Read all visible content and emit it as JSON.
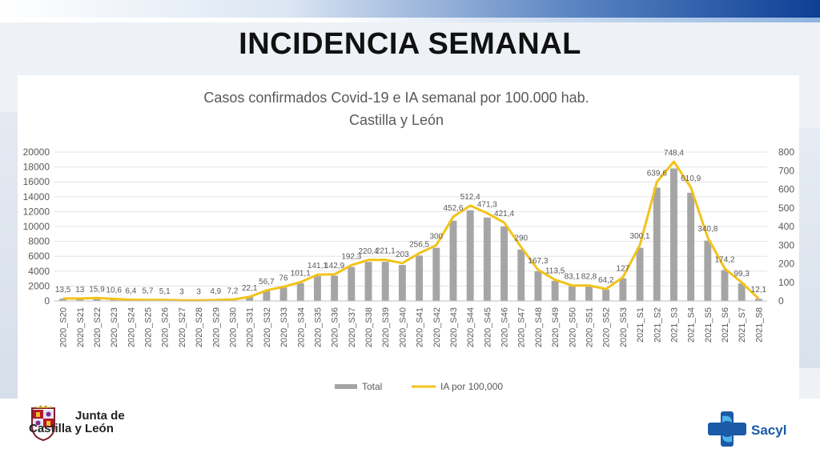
{
  "slide": {
    "title": "INCIDENCIA SEMANAL"
  },
  "logos": {
    "jcyl_line1": "Junta de",
    "jcyl_line2": "Castilla y León",
    "sacyl": "Sacyl"
  },
  "colors": {
    "bar": "#a5a5a5",
    "line": "#f2c31b",
    "text": "#595959",
    "grid": "#e3e3e3"
  },
  "chart_data": {
    "type": "bar",
    "title": "Casos confirmados Covid-19 e IA semanal por 100.000 hab.",
    "subtitle": "Castilla y León",
    "categories": [
      "2020_S20",
      "2020_S21",
      "2020_S22",
      "2020_S23",
      "2020_S24",
      "2020_S25",
      "2020_S26",
      "2020_S27",
      "2020_S28",
      "2020_S29",
      "2020_S30",
      "2020_S31",
      "2020_S32",
      "2020_S33",
      "2020_S34",
      "2020_S35",
      "2020_S36",
      "2020_S37",
      "2020_S38",
      "2020_S39",
      "2020_S40",
      "2020_S41",
      "2020_S42",
      "2020_S43",
      "2020_S44",
      "2020_S45",
      "2020_S46",
      "2020_S47",
      "2020_S48",
      "2020_S49",
      "2020_S50",
      "2020_S51",
      "2020_S52",
      "2020_S53",
      "2021_S1",
      "2021_S2",
      "2021_S3",
      "2021_S4",
      "2021_S5",
      "2021_S6",
      "2021_S7",
      "2021_S8"
    ],
    "y_left": {
      "min": 0,
      "max": 20000,
      "step": 2000,
      "ticks": [
        "0",
        "2000",
        "4000",
        "6000",
        "8000",
        "10000",
        "12000",
        "14000",
        "16000",
        "18000",
        "20000"
      ]
    },
    "y_right": {
      "min": 0,
      "max": 800,
      "step": 100,
      "ticks": [
        "0",
        "100",
        "200",
        "300",
        "400",
        "500",
        "600",
        "700",
        "800"
      ]
    },
    "grid": true,
    "legend_position": "bottom",
    "series": [
      {
        "name": "Total",
        "type": "bar",
        "axis": "left",
        "values": [
          320,
          310,
          380,
          250,
          150,
          130,
          120,
          70,
          70,
          120,
          170,
          530,
          1350,
          1800,
          2400,
          3350,
          3400,
          4570,
          5240,
          5260,
          4830,
          6100,
          7140,
          10770,
          12190,
          11210,
          10020,
          6900,
          3980,
          2700,
          1980,
          1970,
          1530,
          3030,
          7140,
          15220,
          17800,
          14540,
          8110,
          4150,
          2360,
          290
        ]
      },
      {
        "name": "IA por 100,000",
        "type": "line",
        "axis": "right",
        "values": [
          13.5,
          13,
          15.9,
          10.6,
          6.4,
          5.7,
          5.1,
          3,
          3,
          4.9,
          7.2,
          22.1,
          56.7,
          76,
          101.1,
          141.1,
          142.9,
          192.3,
          220.4,
          221.1,
          203,
          256.5,
          300,
          452.6,
          512.4,
          471.3,
          421.4,
          290,
          167.3,
          113.5,
          83.1,
          82.8,
          64.2,
          127,
          300.1,
          639.6,
          748.4,
          610.9,
          340.8,
          174.2,
          99.3,
          12.1
        ],
        "labels": [
          "13,5",
          "13",
          "15,9",
          "10,6",
          "6,4",
          "5,7",
          "5,1",
          "3",
          "3",
          "4,9",
          "7,2",
          "22,1",
          "56,7",
          "76",
          "101,1",
          "141,1",
          "142,9",
          "192,3",
          "220,4",
          "221,1",
          "203",
          "256,5",
          "300",
          "452,6",
          "512,4",
          "471,3",
          "421,4",
          "290",
          "167,3",
          "113,5",
          "83,1",
          "82,8",
          "64,2",
          "127",
          "300,1",
          "639,6",
          "748,4",
          "610,9",
          "340,8",
          "174,2",
          "99,3",
          "12,1"
        ]
      }
    ]
  }
}
